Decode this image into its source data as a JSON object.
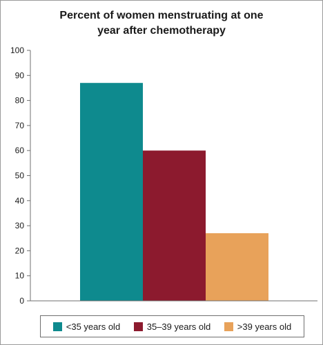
{
  "chart_data": {
    "type": "bar",
    "title_lines": [
      "Percent of women menstruating at one",
      "year after chemotherapy"
    ],
    "xlabel": "",
    "ylabel": "",
    "ylim": [
      0,
      100
    ],
    "yticks": [
      0,
      10,
      20,
      30,
      40,
      50,
      60,
      70,
      80,
      90,
      100
    ],
    "grid": false,
    "legend_position": "bottom",
    "categories": [
      "<35 years old",
      "35–39 years old",
      ">39 years old"
    ],
    "values": [
      87,
      60,
      27
    ],
    "colors": [
      "#0e8a8e",
      "#8c1a2e",
      "#e8a25a"
    ]
  }
}
